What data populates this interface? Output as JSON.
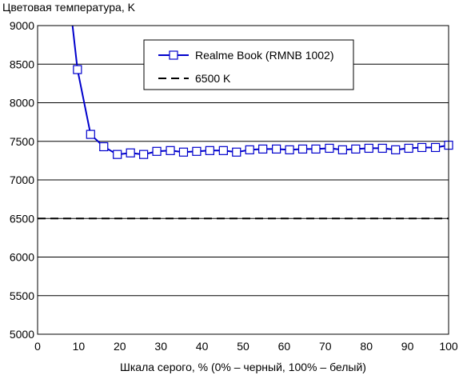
{
  "chart_data": {
    "type": "line",
    "ylabel": "Цветовая температура, K",
    "xlabel": "Шкала серого, % (0% – черный, 100% – белый)",
    "xlim": [
      0,
      100
    ],
    "ylim": [
      5000,
      9000
    ],
    "xticks": [
      0,
      10,
      20,
      30,
      40,
      50,
      60,
      70,
      80,
      90,
      100
    ],
    "yticks": [
      5000,
      5500,
      6000,
      6500,
      7000,
      7500,
      8000,
      8500,
      9000
    ],
    "grid": "horizontal",
    "legend_position": "top-center",
    "series": [
      {
        "name": "Realme Book (RMNB 1002)",
        "color": "#0000cc",
        "marker": "open-square",
        "x": [
          9.7,
          12.9,
          16.1,
          19.4,
          22.6,
          25.8,
          29.0,
          32.3,
          35.5,
          38.7,
          41.9,
          45.2,
          48.4,
          51.6,
          54.8,
          58.1,
          61.3,
          64.5,
          67.7,
          71.0,
          74.2,
          77.4,
          80.6,
          83.9,
          87.1,
          90.3,
          93.5,
          96.8,
          100
        ],
        "y": [
          8430,
          7590,
          7430,
          7330,
          7350,
          7330,
          7370,
          7380,
          7360,
          7370,
          7380,
          7380,
          7360,
          7390,
          7400,
          7400,
          7390,
          7400,
          7400,
          7410,
          7390,
          7400,
          7410,
          7410,
          7390,
          7410,
          7420,
          7420,
          7450
        ],
        "line_start": {
          "x": 8.5,
          "y": 9000
        }
      },
      {
        "name": "6500 K",
        "color": "#000000",
        "style": "dashed",
        "x": [
          0,
          100
        ],
        "y": [
          6500,
          6500
        ]
      }
    ]
  }
}
